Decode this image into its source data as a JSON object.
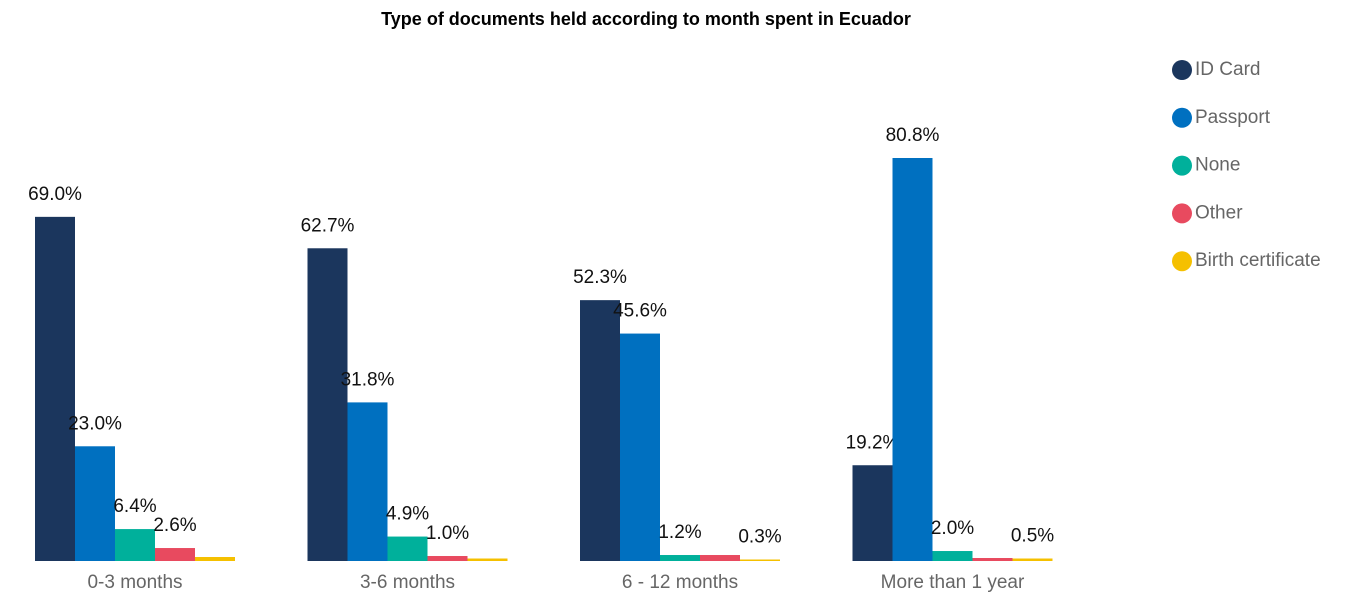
{
  "chart_data": {
    "type": "bar",
    "title": "Type of documents held according to month spent in Ecuador",
    "categories": [
      "0-3 months",
      "3-6 months",
      "6 - 12 months",
      "More than 1 year"
    ],
    "series": [
      {
        "name": "ID Card",
        "color": "#1b365d",
        "values": [
          69.0,
          62.7,
          52.3,
          19.2
        ],
        "value_labels": [
          "69.0%",
          "62.7%",
          "52.3%",
          "19.2%"
        ]
      },
      {
        "name": "Passport",
        "color": "#0070c0",
        "values": [
          23.0,
          31.8,
          45.6,
          80.8
        ],
        "value_labels": [
          "23.0%",
          "31.8%",
          "45.6%",
          "80.8%"
        ]
      },
      {
        "name": "None",
        "color": "#00b09b",
        "values": [
          6.4,
          4.9,
          1.2,
          2.0
        ],
        "value_labels": [
          "6.4%",
          "4.9%",
          "1.2%",
          "2.0%"
        ]
      },
      {
        "name": "Other",
        "color": "#e84a5f",
        "values": [
          2.6,
          1.0,
          1.2,
          0.6
        ],
        "value_labels": [
          "2.6%",
          "1.0%",
          null,
          null
        ]
      },
      {
        "name": "Birth certificate",
        "color": "#f5c000",
        "values": [
          0.8,
          0.5,
          0.3,
          0.5
        ],
        "value_labels": [
          null,
          null,
          "0.3%",
          "0.5%"
        ]
      }
    ],
    "legend": "right"
  }
}
